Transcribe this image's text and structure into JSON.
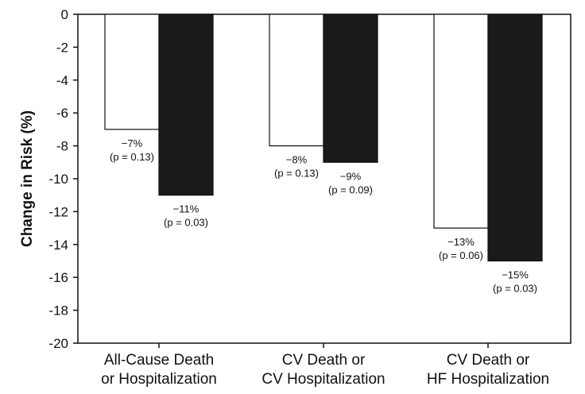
{
  "chart_data": {
    "type": "bar",
    "ylabel": "Change in Risk (%)",
    "ylim": [
      -20,
      0
    ],
    "yticks": [
      0,
      -2,
      -4,
      -6,
      -8,
      -10,
      -12,
      -14,
      -16,
      -18,
      -20
    ],
    "grid": false,
    "legend": "none",
    "categories": [
      [
        "All-Cause Death",
        "or Hospitalization"
      ],
      [
        "CV Death or",
        "CV Hospitalization"
      ],
      [
        "CV Death or",
        "HF Hospitalization"
      ]
    ],
    "series": [
      {
        "values": [
          -7,
          -8,
          -13
        ],
        "color": "#ffffff",
        "labels": [
          [
            "−7%",
            "(p = 0.13)"
          ],
          [
            "−8%",
            "(p = 0.13)"
          ],
          [
            "−13%",
            "(p = 0.06)"
          ]
        ]
      },
      {
        "values": [
          -11,
          -9,
          -15
        ],
        "color": "#1a1a1a",
        "labels": [
          [
            "−11%",
            "(p = 0.03)"
          ],
          [
            "−9%",
            "(p = 0.09)"
          ],
          [
            "−15%",
            "(p = 0.03)"
          ]
        ]
      }
    ]
  }
}
